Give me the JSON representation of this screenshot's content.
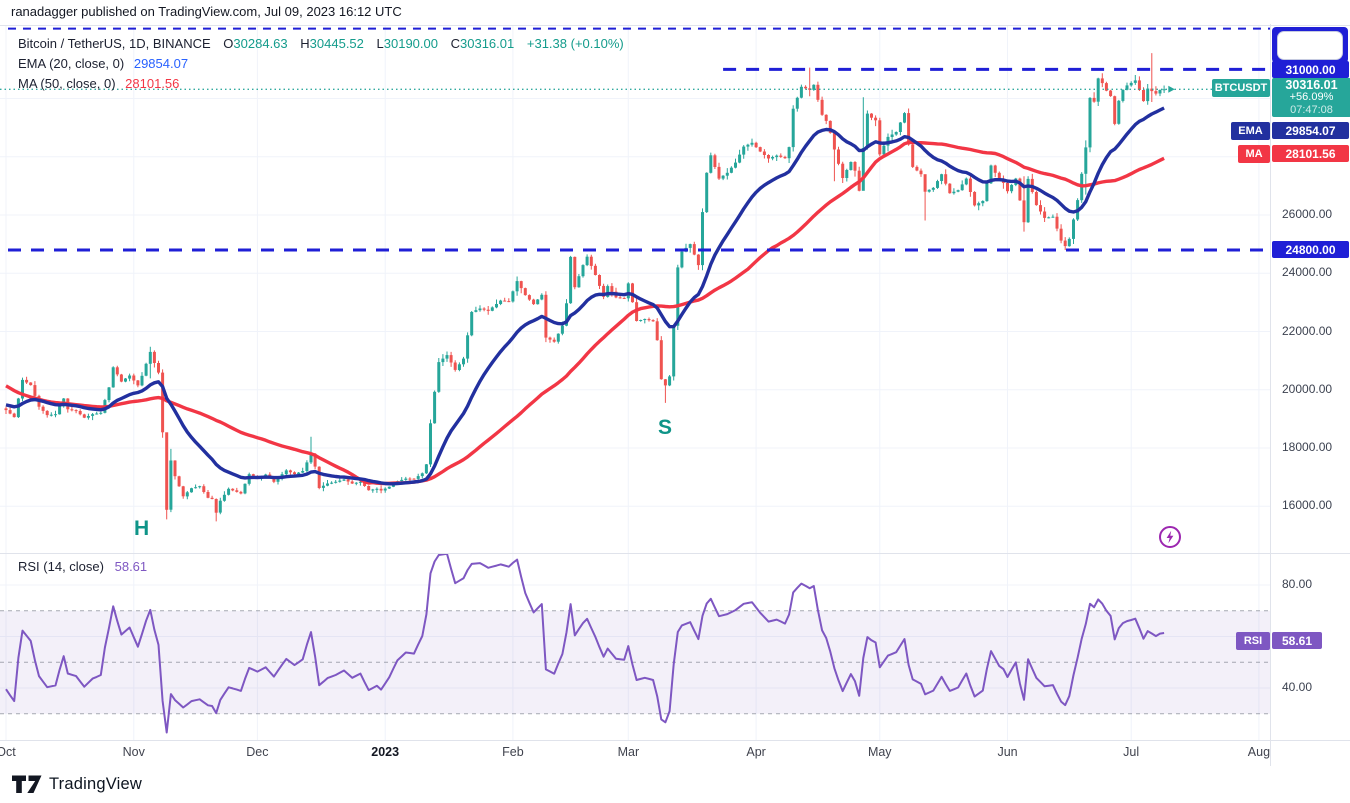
{
  "header": {
    "published_line": "ranadagger published on TradingView.com, Jul 09, 2023 16:12 UTC"
  },
  "legend": {
    "symbol_title": "Bitcoin / TetherUS, 1D, BINANCE",
    "o_label": "O",
    "o_value": "30284.63",
    "h_label": "H",
    "h_value": "30445.52",
    "l_label": "L",
    "l_value": "30190.00",
    "c_label": "C",
    "c_value": "30316.01",
    "change": "+31.38 (+0.10%)",
    "ema_label": "EMA (20, close, 0)",
    "ema_value": "29854.07",
    "ma_label": "MA (50, close, 0)",
    "ma_value": "28101.56"
  },
  "rsi_legend": {
    "label": "RSI (14, close)",
    "value": "58.61"
  },
  "annotations": {
    "head_label": "H",
    "shoulder_label": "S"
  },
  "price_scale": {
    "resistance_label": "31000.00",
    "support_label": "24800.00",
    "symbol_tag": "BTCUSDT",
    "last_price": "30316.01",
    "change_pct": "+56.09%",
    "countdown": "07:47:08",
    "ema_tag": "EMA",
    "ema_value": "29854.07",
    "ma_tag": "MA",
    "ma_value": "28101.56",
    "ticks": [
      {
        "label": "26000.00",
        "value": 26000
      },
      {
        "label": "24000.00",
        "value": 24000
      },
      {
        "label": "22000.00",
        "value": 22000
      },
      {
        "label": "20000.00",
        "value": 20000
      },
      {
        "label": "18000.00",
        "value": 18000
      },
      {
        "label": "16000.00",
        "value": 16000
      }
    ]
  },
  "rsi_scale": {
    "tag": "RSI",
    "value": "58.61",
    "ticks": [
      {
        "label": "80.00",
        "value": 80
      },
      {
        "label": "40.00",
        "value": 40
      }
    ]
  },
  "footer": {
    "brand": "TradingView"
  },
  "colors": {
    "up": "#26a69a",
    "down": "#ef5350",
    "ema": "#22309f",
    "ma": "#f23645",
    "level_blue": "#1f1fd6",
    "price_line": "#26a69a",
    "rsi": "#7e57c2",
    "rsi_band_fill": "rgba(126,87,194,0.09)",
    "band_dash": "#8a8e99",
    "grid": "#f0f3fa",
    "border": "#e0e3eb",
    "teal_box": "#26a69a",
    "purple_icon": "#9c27b0"
  },
  "chart_data": {
    "type": "candlestick",
    "title": "Bitcoin / TetherUS, 1D, BINANCE",
    "symbol": "BTCUSDT",
    "exchange": "BINANCE",
    "interval": "1D",
    "last_ohlc": {
      "o": 30284.63,
      "h": 30445.52,
      "l": 30190.0,
      "c": 30316.01,
      "change": 31.38,
      "change_pct": 0.1
    },
    "levels": {
      "resistance": 31000,
      "support": 24800,
      "upper_line": 32400,
      "upper_line_label_covered": true,
      "current_price": 30316.01,
      "resistance_start_day": 174
    },
    "overlays": [
      {
        "name": "EMA",
        "period": 20,
        "value": 29854.07
      },
      {
        "name": "MA",
        "period": 50,
        "value": 28101.56
      }
    ],
    "rsi": {
      "period": 14,
      "value": 58.61,
      "upper_band": 70,
      "mid_band": 50,
      "lower_band": 30,
      "ticks": [
        80,
        60,
        40
      ]
    },
    "y_axis": {
      "grid_step": 2000,
      "grid_min": 16000,
      "grid_max": 30000,
      "visible_tick_range": [
        16000,
        26000
      ]
    },
    "x_axis": {
      "months": [
        {
          "label": "Oct",
          "day": 0
        },
        {
          "label": "Nov",
          "day": 31
        },
        {
          "label": "Dec",
          "day": 61
        },
        {
          "label": "2023",
          "day": 92,
          "bold": true
        },
        {
          "label": "Feb",
          "day": 123
        },
        {
          "label": "Mar",
          "day": 151
        },
        {
          "label": "Apr",
          "day": 182
        },
        {
          "label": "May",
          "day": 212
        },
        {
          "label": "Jun",
          "day": 243
        },
        {
          "label": "Jul",
          "day": 273
        },
        {
          "label": "Aug",
          "day": 304
        }
      ],
      "start": "2022-10-01",
      "last_day": 281
    },
    "prehistory_anchors": [
      [
        -50,
        23300
      ],
      [
        -46,
        23150
      ],
      [
        -42,
        21400
      ],
      [
        -38,
        20100
      ],
      [
        -34,
        20150
      ],
      [
        -30,
        19800
      ],
      [
        -26,
        19550
      ],
      [
        -22,
        18800
      ],
      [
        -18,
        19450
      ],
      [
        -14,
        19700
      ],
      [
        -10,
        20100
      ],
      [
        -7,
        19300
      ],
      [
        -4,
        18950
      ],
      [
        -2,
        19420
      ],
      [
        -1,
        19360
      ]
    ],
    "close_anchors": [
      [
        0,
        19300
      ],
      [
        2,
        19060
      ],
      [
        4,
        20340
      ],
      [
        6,
        20160
      ],
      [
        8,
        19420
      ],
      [
        10,
        19130
      ],
      [
        12,
        19160
      ],
      [
        14,
        19700
      ],
      [
        15,
        19330
      ],
      [
        17,
        19270
      ],
      [
        19,
        19040
      ],
      [
        21,
        19160
      ],
      [
        23,
        19210
      ],
      [
        25,
        20080
      ],
      [
        26,
        20770
      ],
      [
        28,
        20280
      ],
      [
        30,
        20490
      ],
      [
        32,
        20150
      ],
      [
        33,
        20480
      ],
      [
        35,
        21300
      ],
      [
        36,
        20920
      ],
      [
        37,
        20590
      ],
      [
        38,
        18540
      ],
      [
        39,
        15880
      ],
      [
        40,
        17570
      ],
      [
        41,
        17030
      ],
      [
        43,
        16340
      ],
      [
        45,
        16620
      ],
      [
        47,
        16690
      ],
      [
        49,
        16290
      ],
      [
        50,
        16250
      ],
      [
        51,
        15780
      ],
      [
        52,
        16190
      ],
      [
        54,
        16600
      ],
      [
        57,
        16440
      ],
      [
        59,
        17100
      ],
      [
        61,
        16980
      ],
      [
        63,
        17090
      ],
      [
        65,
        16840
      ],
      [
        68,
        17230
      ],
      [
        70,
        17100
      ],
      [
        72,
        17210
      ],
      [
        74,
        17800
      ],
      [
        75,
        17360
      ],
      [
        76,
        16630
      ],
      [
        78,
        16780
      ],
      [
        80,
        16840
      ],
      [
        82,
        16920
      ],
      [
        84,
        16780
      ],
      [
        86,
        16840
      ],
      [
        88,
        16550
      ],
      [
        90,
        16600
      ],
      [
        91,
        16540
      ],
      [
        93,
        16670
      ],
      [
        95,
        16860
      ],
      [
        97,
        16950
      ],
      [
        99,
        16940
      ],
      [
        101,
        17130
      ],
      [
        102,
        17440
      ],
      [
        103,
        18850
      ],
      [
        104,
        19930
      ],
      [
        105,
        20950
      ],
      [
        107,
        21190
      ],
      [
        109,
        20680
      ],
      [
        111,
        21070
      ],
      [
        113,
        22670
      ],
      [
        115,
        22790
      ],
      [
        117,
        22710
      ],
      [
        120,
        23060
      ],
      [
        122,
        23030
      ],
      [
        124,
        23730
      ],
      [
        126,
        23250
      ],
      [
        128,
        22940
      ],
      [
        130,
        23260
      ],
      [
        131,
        21790
      ],
      [
        133,
        21650
      ],
      [
        135,
        22200
      ],
      [
        136,
        22970
      ],
      [
        137,
        24560
      ],
      [
        138,
        23520
      ],
      [
        140,
        24280
      ],
      [
        141,
        24570
      ],
      [
        143,
        23940
      ],
      [
        145,
        23190
      ],
      [
        146,
        23560
      ],
      [
        148,
        23170
      ],
      [
        150,
        23140
      ],
      [
        151,
        23650
      ],
      [
        153,
        22360
      ],
      [
        155,
        22430
      ],
      [
        157,
        22350
      ],
      [
        158,
        21700
      ],
      [
        159,
        20360
      ],
      [
        160,
        20150
      ],
      [
        161,
        20460
      ],
      [
        162,
        22200
      ],
      [
        163,
        24200
      ],
      [
        164,
        24740
      ],
      [
        166,
        25000
      ],
      [
        168,
        24280
      ],
      [
        169,
        26100
      ],
      [
        170,
        27450
      ],
      [
        171,
        28050
      ],
      [
        173,
        27250
      ],
      [
        175,
        27450
      ],
      [
        177,
        27800
      ],
      [
        179,
        28350
      ],
      [
        181,
        28480
      ],
      [
        183,
        28180
      ],
      [
        185,
        27940
      ],
      [
        187,
        28040
      ],
      [
        189,
        27950
      ],
      [
        190,
        28330
      ],
      [
        191,
        29650
      ],
      [
        193,
        30400
      ],
      [
        195,
        30300
      ],
      [
        196,
        30470
      ],
      [
        198,
        29440
      ],
      [
        199,
        29230
      ],
      [
        200,
        28820
      ],
      [
        201,
        28250
      ],
      [
        203,
        27270
      ],
      [
        205,
        27820
      ],
      [
        206,
        27520
      ],
      [
        207,
        26830
      ],
      [
        208,
        28300
      ],
      [
        209,
        29480
      ],
      [
        210,
        29340
      ],
      [
        211,
        29250
      ],
      [
        212,
        28080
      ],
      [
        214,
        28680
      ],
      [
        216,
        28850
      ],
      [
        218,
        29500
      ],
      [
        219,
        28420
      ],
      [
        220,
        27650
      ],
      [
        222,
        27400
      ],
      [
        223,
        26800
      ],
      [
        225,
        26930
      ],
      [
        227,
        27400
      ],
      [
        229,
        26750
      ],
      [
        231,
        26850
      ],
      [
        233,
        27250
      ],
      [
        235,
        26330
      ],
      [
        237,
        26480
      ],
      [
        239,
        27700
      ],
      [
        241,
        27200
      ],
      [
        242,
        27100
      ],
      [
        243,
        26820
      ],
      [
        245,
        27250
      ],
      [
        247,
        25750
      ],
      [
        248,
        27240
      ],
      [
        250,
        26340
      ],
      [
        252,
        25900
      ],
      [
        254,
        25940
      ],
      [
        256,
        25120
      ],
      [
        257,
        24930
      ],
      [
        258,
        25180
      ],
      [
        260,
        26510
      ],
      [
        262,
        28320
      ],
      [
        263,
        30020
      ],
      [
        264,
        29890
      ],
      [
        265,
        30690
      ],
      [
        266,
        30530
      ],
      [
        267,
        30270
      ],
      [
        268,
        30080
      ],
      [
        269,
        29130
      ],
      [
        270,
        29920
      ],
      [
        271,
        30300
      ],
      [
        272,
        30450
      ],
      [
        274,
        30620
      ],
      [
        275,
        30290
      ],
      [
        276,
        29910
      ],
      [
        277,
        30340
      ],
      [
        279,
        30170
      ],
      [
        280,
        30290
      ],
      [
        281,
        30316.01
      ]
    ],
    "wick_overrides": {
      "35": [
        21480,
        20390
      ],
      "38": [
        20700,
        18350
      ],
      "39": [
        18100,
        15550
      ],
      "40": [
        17970,
        15800
      ],
      "51": [
        16270,
        15480
      ],
      "74": [
        18390,
        17450
      ],
      "75": [
        17830,
        17270
      ],
      "160": [
        20370,
        19550
      ],
      "163": [
        24290,
        22050
      ],
      "191": [
        29770,
        28180
      ],
      "195": [
        31060,
        30080
      ],
      "201": [
        28440,
        27160
      ],
      "208": [
        30040,
        27250
      ],
      "223": [
        27070,
        25810
      ],
      "247": [
        27330,
        25430
      ],
      "257": [
        25240,
        24800
      ],
      "262": [
        28560,
        26700
      ],
      "278": [
        31560,
        29880
      ]
    }
  }
}
